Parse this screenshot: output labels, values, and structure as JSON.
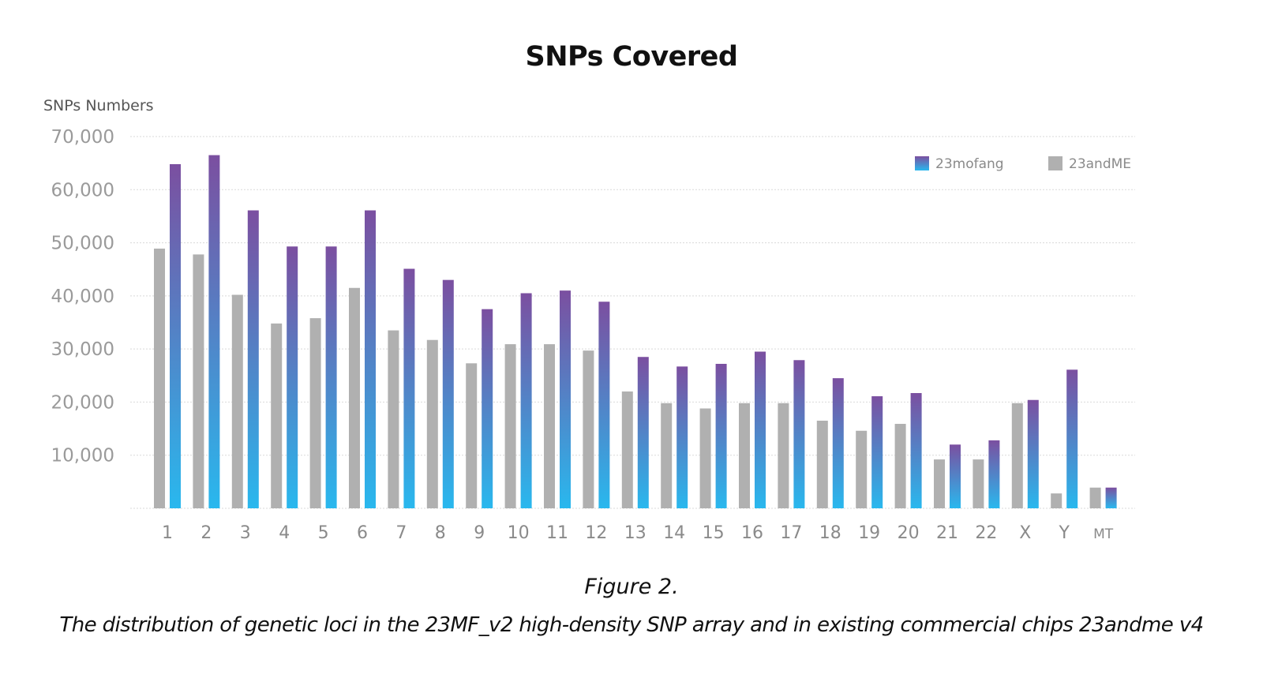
{
  "chart_data": {
    "type": "bar",
    "title": "SNPs Covered",
    "ylabel": "SNPs Numbers",
    "xlabel": "",
    "ylim": [
      0,
      70000
    ],
    "yticks": [
      10000,
      20000,
      30000,
      40000,
      50000,
      60000,
      70000
    ],
    "ytick_labels": [
      "10,000",
      "20,000",
      "30,000",
      "40,000",
      "50,000",
      "60,000",
      "70,000"
    ],
    "grid": true,
    "legend_position": "top-right",
    "categories": [
      "1",
      "2",
      "3",
      "4",
      "5",
      "6",
      "7",
      "8",
      "9",
      "10",
      "11",
      "12",
      "13",
      "14",
      "15",
      "16",
      "17",
      "18",
      "19",
      "20",
      "21",
      "22",
      "X",
      "Y",
      "MT"
    ],
    "series": [
      {
        "name": "23andME",
        "color": "#b0b0b0",
        "values": [
          48900,
          47800,
          40200,
          34800,
          35800,
          41500,
          33500,
          31700,
          27300,
          30900,
          30900,
          29700,
          22000,
          19800,
          18800,
          19800,
          19800,
          16500,
          14600,
          15900,
          9200,
          9200,
          19800,
          2800,
          3900
        ]
      },
      {
        "name": "23mofang",
        "color_top": "#7b4fa0",
        "color_bottom": "#29b8ee",
        "values": [
          64800,
          66500,
          56100,
          49300,
          49300,
          56100,
          45100,
          43000,
          37500,
          40500,
          41000,
          38900,
          28500,
          26700,
          27200,
          29500,
          27900,
          24500,
          21100,
          21700,
          12000,
          12800,
          20400,
          26100,
          3900
        ]
      }
    ]
  },
  "caption": {
    "label": "Figure 2.",
    "text": "The distribution of genetic loci in the 23MF_v2 high-density SNP array and in existing commercial chips 23andme v4"
  }
}
